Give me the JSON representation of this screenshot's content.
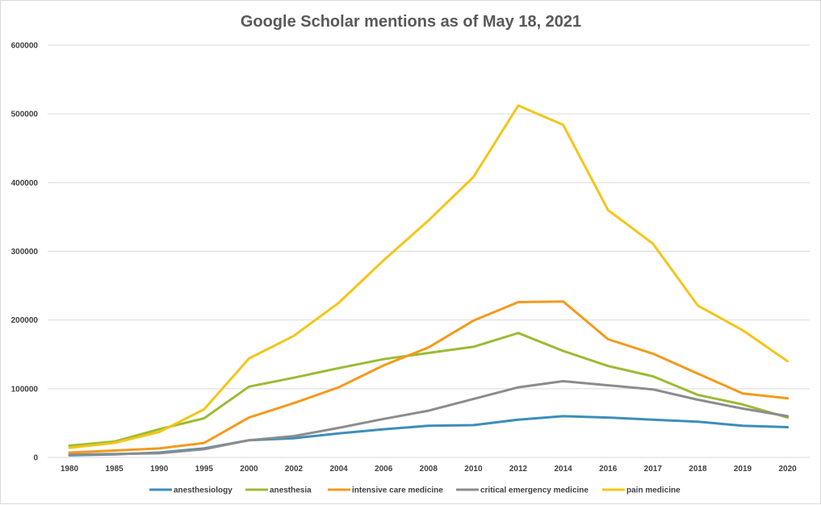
{
  "chart_data": {
    "type": "line",
    "title": "Google Scholar mentions as of May 18, 2021",
    "xlabel": "",
    "ylabel": "",
    "categories": [
      "1980",
      "1985",
      "1990",
      "1995",
      "2000",
      "2002",
      "2004",
      "2006",
      "2008",
      "2010",
      "2012",
      "2014",
      "2016",
      "2017",
      "2018",
      "2019",
      "2020"
    ],
    "ylim": [
      0,
      600000
    ],
    "yticks": [
      "0",
      "100000",
      "200000",
      "300000",
      "400000",
      "500000",
      "600000"
    ],
    "grid": true,
    "legend_position": "bottom",
    "series": [
      {
        "name": "anesthesiology",
        "color": "#3d8eb9",
        "values": [
          3000,
          4500,
          7000,
          13000,
          25000,
          28000,
          35000,
          41000,
          46000,
          47000,
          55000,
          60000,
          58000,
          55000,
          52000,
          46000,
          44000
        ]
      },
      {
        "name": "anesthesia",
        "color": "#9bbb34",
        "values": [
          17000,
          23000,
          41000,
          57000,
          103000,
          116000,
          130000,
          143000,
          152000,
          161000,
          181000,
          155000,
          133000,
          118000,
          91000,
          77000,
          58000
        ]
      },
      {
        "name": "intensive care medicine",
        "color": "#f39a1c",
        "values": [
          7000,
          10000,
          13000,
          21000,
          58000,
          79000,
          102000,
          134000,
          160000,
          199000,
          226000,
          227000,
          172000,
          151000,
          122000,
          93000,
          86000
        ]
      },
      {
        "name": "critical emergency medicine",
        "color": "#8c8c8c",
        "values": [
          4000,
          5000,
          6000,
          12000,
          25000,
          31000,
          43000,
          56000,
          68000,
          85000,
          102000,
          111000,
          105000,
          99000,
          84000,
          71000,
          60000
        ]
      },
      {
        "name": "pain medicine",
        "color": "#f5c518",
        "values": [
          14000,
          21000,
          37000,
          70000,
          144000,
          177000,
          225000,
          287000,
          345000,
          408000,
          512000,
          484000,
          360000,
          311000,
          221000,
          185000,
          140000
        ]
      }
    ]
  }
}
